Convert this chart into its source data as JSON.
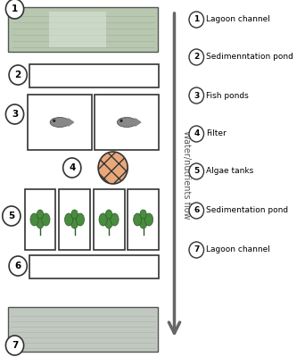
{
  "legend_items": [
    {
      "num": "1",
      "label": "Lagoon channel"
    },
    {
      "num": "2",
      "label": "Sedimenntation pond"
    },
    {
      "num": "3",
      "label": "Fish ponds"
    },
    {
      "num": "4",
      "label": "Filter"
    },
    {
      "num": "5",
      "label": "Algae tanks"
    },
    {
      "num": "6",
      "label": "Sedimentation pond"
    },
    {
      "num": "7",
      "label": "Lagoon channel"
    }
  ],
  "arrow_label": "Water/nutrients flow",
  "bg_color": "#ffffff",
  "circle_color": "#ffffff",
  "circle_edgecolor": "#333333",
  "rect_edgecolor": "#333333",
  "rect_facecolor": "#ffffff",
  "arrow_color": "#666666",
  "text_color": "#000000",
  "filter_color": "#e8a87c",
  "fish_color": "#888888",
  "algae_color": "#4a8c3f",
  "algae_edge": "#2d5c28",
  "photo1_color": "#b8c8b0",
  "photo2_color": "#c0c8c0"
}
